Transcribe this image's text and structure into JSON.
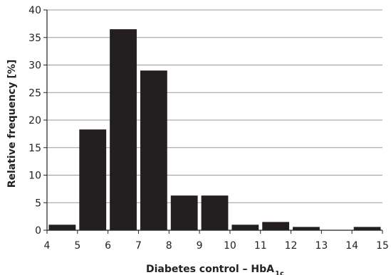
{
  "chart_data": {
    "type": "bar",
    "bins": [
      {
        "from": 4,
        "to": 5,
        "value": 1
      },
      {
        "from": 5,
        "to": 6,
        "value": 18.3
      },
      {
        "from": 6,
        "to": 7,
        "value": 36.5
      },
      {
        "from": 7,
        "to": 8,
        "value": 29
      },
      {
        "from": 8,
        "to": 9,
        "value": 6.3
      },
      {
        "from": 9,
        "to": 10,
        "value": 6.3
      },
      {
        "from": 10,
        "to": 11,
        "value": 1
      },
      {
        "from": 11,
        "to": 12,
        "value": 1.5
      },
      {
        "from": 12,
        "to": 13,
        "value": 0.6
      },
      {
        "from": 13,
        "to": 14,
        "value": 0
      },
      {
        "from": 14,
        "to": 15,
        "value": 0.6
      }
    ],
    "xlim": [
      4,
      15
    ],
    "ylim": [
      0,
      40
    ],
    "xticks": [
      4,
      5,
      6,
      7,
      8,
      9,
      10,
      11,
      12,
      13,
      14,
      15
    ],
    "yticks": [
      0,
      5,
      10,
      15,
      20,
      25,
      30,
      35,
      40
    ],
    "xlabel": "Diabetes control – HbA",
    "xlabel_subscript": "1c",
    "ylabel": "Relative frequency [%]",
    "grid": "horizontal",
    "bar_color": "#231f20",
    "grid_color": "#9a9a9a"
  }
}
